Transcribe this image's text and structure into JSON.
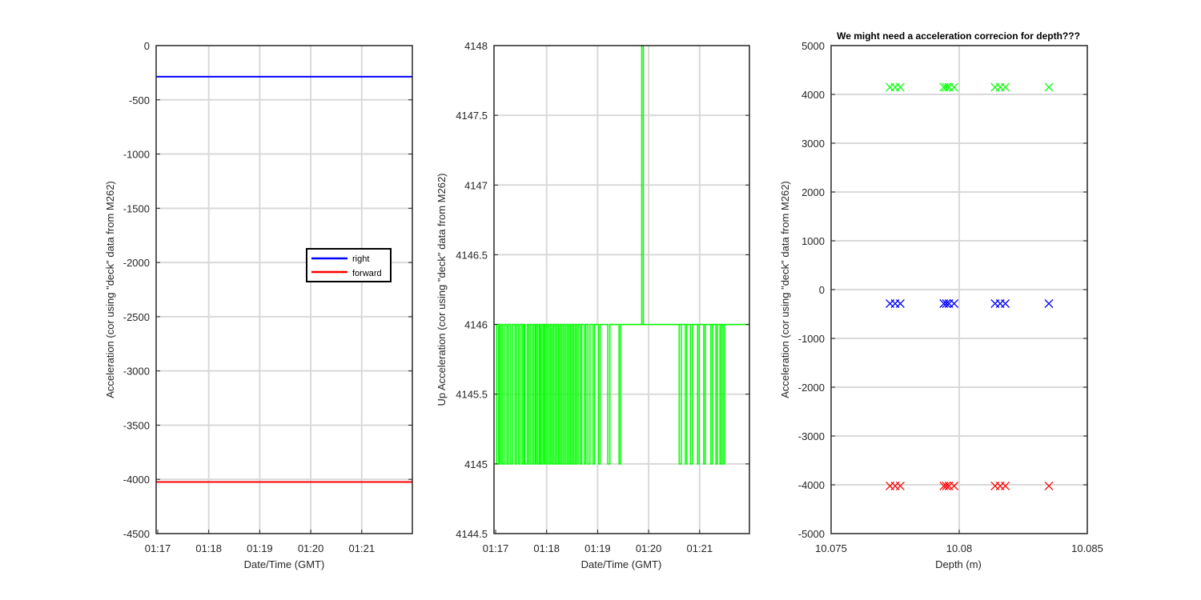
{
  "colors": {
    "right": "#0000ff",
    "forward": "#ff0000",
    "up": "#00ff00",
    "grid": "#d9d9d9",
    "axis": "#262626"
  },
  "chart_data": [
    {
      "type": "line",
      "title": "",
      "xlabel": "Date/Time (GMT)",
      "ylabel": "Acceleration (cor using \"deck\" data from M262)",
      "xticks": [
        "01:17",
        "01:18",
        "01:19",
        "01:20",
        "01:21"
      ],
      "xlim_minutes": [
        0,
        5
      ],
      "ylim": [
        -4500,
        0
      ],
      "yticks": [
        0,
        -500,
        -1000,
        -1500,
        -2000,
        -2500,
        -3000,
        -3500,
        -4000,
        -4500
      ],
      "grid": true,
      "legend_position": "right-middle",
      "series": [
        {
          "name": "right",
          "color": "#0000ff",
          "x_minutes": [
            0,
            5
          ],
          "values": [
            -287,
            -287
          ]
        },
        {
          "name": "forward",
          "color": "#ff0000",
          "x_minutes": [
            0,
            5
          ],
          "values": [
            -4024,
            -4024
          ]
        }
      ]
    },
    {
      "type": "line",
      "title": "",
      "xlabel": "Date/Time (GMT)",
      "ylabel": "Up Acceleration (cor using \"deck\" data from M262)",
      "xticks": [
        "01:17",
        "01:18",
        "01:19",
        "01:20",
        "01:21"
      ],
      "xlim_minutes": [
        0,
        5
      ],
      "ylim": [
        4144.5,
        4148
      ],
      "yticks": [
        4148,
        4147.5,
        4147,
        4146.5,
        4146,
        4145.5,
        4145,
        4144.5
      ],
      "grid": true,
      "baseline": 4146,
      "dip_to": 4145,
      "dip_ranges_minutes": [
        [
          0.02,
          0.06
        ],
        [
          0.08,
          0.11
        ],
        [
          0.14,
          0.18
        ],
        [
          0.22,
          0.25
        ],
        [
          0.29,
          0.33
        ],
        [
          0.38,
          0.41
        ],
        [
          0.45,
          0.48
        ],
        [
          0.52,
          0.55
        ],
        [
          0.57,
          0.62
        ],
        [
          0.65,
          0.68
        ],
        [
          0.72,
          0.75
        ],
        [
          0.78,
          0.8
        ],
        [
          0.83,
          0.86
        ],
        [
          0.88,
          0.91
        ],
        [
          0.94,
          0.96
        ],
        [
          0.99,
          1.02
        ],
        [
          1.05,
          1.08
        ],
        [
          1.11,
          1.14
        ],
        [
          1.17,
          1.2
        ],
        [
          1.23,
          1.26
        ],
        [
          1.29,
          1.32
        ],
        [
          1.35,
          1.38
        ],
        [
          1.41,
          1.44
        ],
        [
          1.47,
          1.5
        ],
        [
          1.53,
          1.56
        ],
        [
          1.59,
          1.62
        ],
        [
          1.66,
          1.69
        ],
        [
          1.74,
          1.77
        ],
        [
          1.81,
          1.85
        ],
        [
          1.91,
          1.94
        ],
        [
          2.02,
          2.05
        ],
        [
          2.2,
          2.24
        ],
        [
          2.42,
          2.45
        ],
        [
          3.6,
          3.64
        ],
        [
          3.72,
          3.75
        ],
        [
          3.82,
          3.86
        ],
        [
          3.96,
          3.99
        ],
        [
          4.08,
          4.11
        ],
        [
          4.22,
          4.25
        ],
        [
          4.32,
          4.35
        ],
        [
          4.4,
          4.43
        ],
        [
          4.46,
          4.49
        ]
      ],
      "spike": {
        "x_minutes": 2.88,
        "from": 4146,
        "to": 4148
      }
    },
    {
      "type": "scatter",
      "title": "We might need a acceleration correcion for depth???",
      "xlabel": "Depth (m)",
      "ylabel": "Acceleration (cor using \"deck\" data from M262)",
      "xlim": [
        10.075,
        10.085
      ],
      "xticks": [
        10.075,
        10.08,
        10.085
      ],
      "xtick_labels": [
        "10.075",
        "10.08",
        "10.085"
      ],
      "ylim": [
        -5000,
        5000
      ],
      "yticks": [
        5000,
        4000,
        3000,
        2000,
        1000,
        0,
        -1000,
        -2000,
        -3000,
        -4000,
        -5000
      ],
      "grid": true,
      "marker": "x",
      "depths": [
        10.0773,
        10.0775,
        10.0777,
        10.0794,
        10.0795,
        10.0796,
        10.0798,
        10.0814,
        10.0816,
        10.0818,
        10.0835
      ],
      "series": [
        {
          "name": "up",
          "color": "#00ff00",
          "values": [
            4146,
            4146,
            4146,
            4146,
            4146,
            4146,
            4146,
            4146,
            4146,
            4146,
            4146
          ]
        },
        {
          "name": "right",
          "color": "#0000ff",
          "values": [
            -287,
            -287,
            -287,
            -287,
            -287,
            -287,
            -287,
            -287,
            -287,
            -287,
            -287
          ]
        },
        {
          "name": "forward",
          "color": "#ff0000",
          "values": [
            -4024,
            -4024,
            -4024,
            -4024,
            -4024,
            -4024,
            -4024,
            -4024,
            -4024,
            -4024,
            -4024
          ]
        }
      ]
    }
  ]
}
